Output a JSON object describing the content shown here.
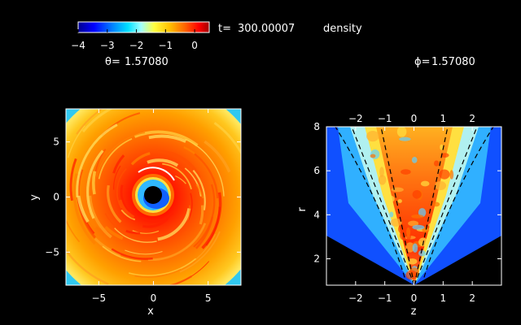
{
  "header": {
    "time_label": "t=",
    "time_value": "300.00007",
    "quantity": "density",
    "theta_label": "θ=",
    "theta_value": "1.57080",
    "phi_label": "ϕ=",
    "phi_value": "1.57080"
  },
  "colorbar": {
    "min": -4,
    "max": 0.5,
    "ticks": [
      "−4",
      "−3",
      "−2",
      "−1",
      "0"
    ],
    "colormap": [
      "#00008f",
      "#0000ff",
      "#0080ff",
      "#00e0ff",
      "#a0ffff",
      "#ffff40",
      "#ffc000",
      "#ff6000",
      "#ff0000",
      "#a00000"
    ]
  },
  "chart_data": [
    {
      "type": "heatmap",
      "title": "",
      "xlabel": "x",
      "ylabel": "y",
      "xlim": [
        -8,
        8
      ],
      "ylim": [
        -8,
        8
      ],
      "xticks": [
        "−5",
        "0",
        "5"
      ],
      "yticks": [
        "−5",
        "0",
        "5"
      ],
      "xtick_values": [
        -5,
        0,
        5
      ],
      "ytick_values": [
        -5,
        0,
        5
      ]
    },
    {
      "type": "heatmap",
      "title": "",
      "xlabel": "z",
      "ylabel": "r",
      "xlim": [
        -3,
        3
      ],
      "ylim": [
        0.8,
        8
      ],
      "xticks": [
        "−2",
        "−1",
        "0",
        "1",
        "2"
      ],
      "yticks": [
        "2",
        "4",
        "6",
        "8"
      ],
      "xtick_values": [
        -2,
        -1,
        0,
        1,
        2
      ],
      "ytick_values": [
        2,
        4,
        6,
        8
      ]
    }
  ]
}
